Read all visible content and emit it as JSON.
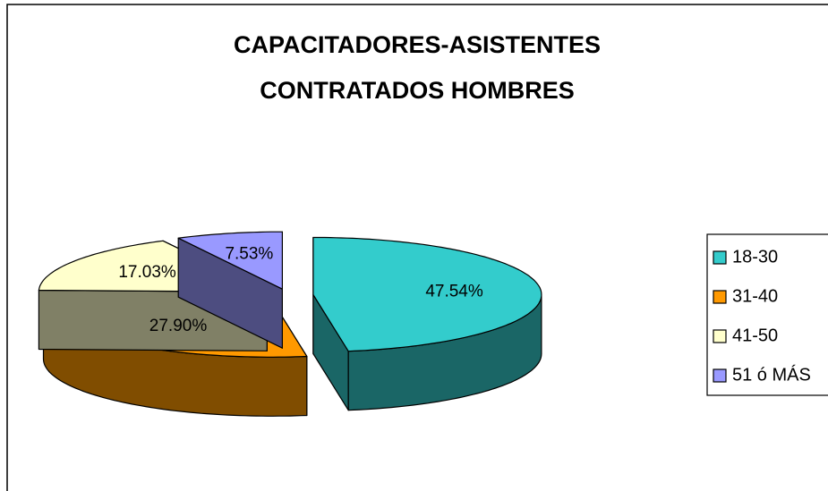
{
  "chart_data": {
    "type": "pie",
    "title": [
      "CAPACITADORES-ASISTENTES",
      "CONTRATADOS HOMBRES"
    ],
    "categories": [
      "18-30",
      "31-40",
      "41-50",
      "51 ó MÁS"
    ],
    "values": [
      47.54,
      27.9,
      17.03,
      7.53
    ],
    "value_labels": [
      "47.54%",
      "27.90%",
      "17.03%",
      "7.53%"
    ],
    "colors": [
      "#33CCCC",
      "#FF9900",
      "#FFFFCC",
      "#9999FF"
    ],
    "legend": "right"
  }
}
